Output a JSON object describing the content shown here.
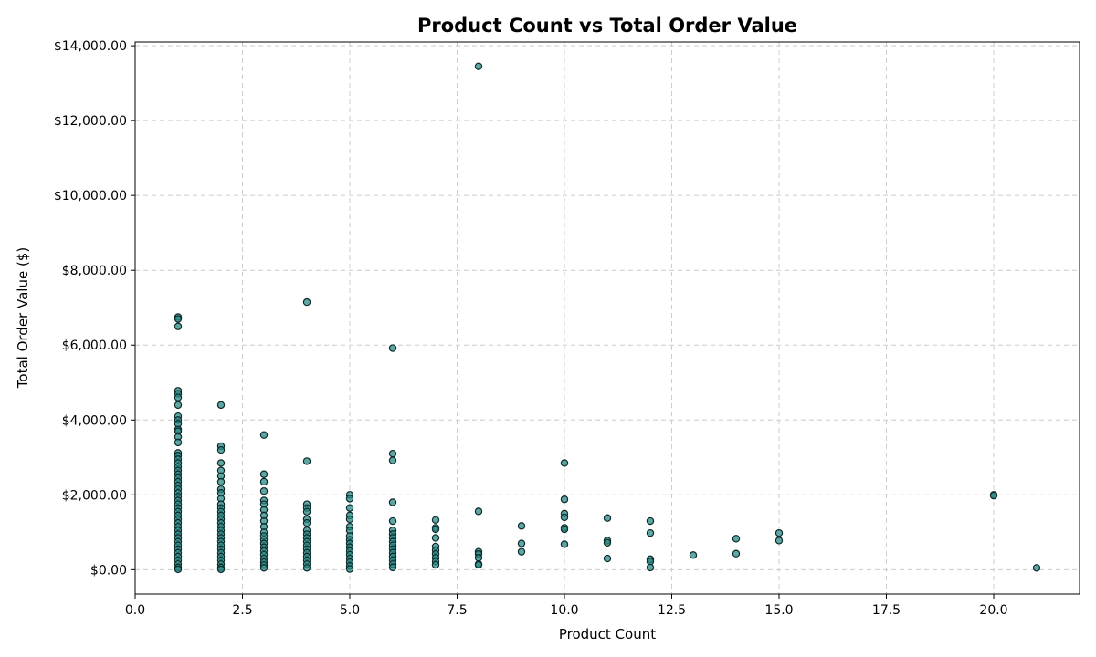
{
  "chart_data": {
    "type": "scatter",
    "title": "Product Count vs Total Order Value",
    "xlabel": "Product Count",
    "ylabel": "Total Order Value ($)",
    "xlim": [
      0,
      22
    ],
    "ylim": [
      -650,
      14100
    ],
    "xticks": [
      0.0,
      2.5,
      5.0,
      7.5,
      10.0,
      12.5,
      15.0,
      17.5,
      20.0
    ],
    "xtick_labels": [
      "0.0",
      "2.5",
      "5.0",
      "7.5",
      "10.0",
      "12.5",
      "15.0",
      "17.5",
      "20.0"
    ],
    "yticks": [
      0,
      2000,
      4000,
      6000,
      8000,
      10000,
      12000,
      14000
    ],
    "ytick_labels": [
      "$0.00",
      "$2,000.00",
      "$4,000.00",
      "$6,000.00",
      "$8,000.00",
      "$10,000.00",
      "$12,000.00",
      "$14,000.00"
    ],
    "grid": true,
    "marker_color": "#2a8a87",
    "marker_edge_color": "#0d2b2a",
    "points": [
      {
        "x": 1,
        "y": 6750
      },
      {
        "x": 1,
        "y": 6700
      },
      {
        "x": 1,
        "y": 6500
      },
      {
        "x": 1,
        "y": 4780
      },
      {
        "x": 1,
        "y": 4700
      },
      {
        "x": 1,
        "y": 4600
      },
      {
        "x": 1,
        "y": 4400
      },
      {
        "x": 1,
        "y": 4100
      },
      {
        "x": 1,
        "y": 4000
      },
      {
        "x": 1,
        "y": 3900
      },
      {
        "x": 1,
        "y": 3750
      },
      {
        "x": 1,
        "y": 3700
      },
      {
        "x": 1,
        "y": 3550
      },
      {
        "x": 1,
        "y": 3400
      },
      {
        "x": 1,
        "y": 3120
      },
      {
        "x": 1,
        "y": 3050
      },
      {
        "x": 1,
        "y": 2950
      },
      {
        "x": 1,
        "y": 2850
      },
      {
        "x": 1,
        "y": 2750
      },
      {
        "x": 1,
        "y": 2650
      },
      {
        "x": 1,
        "y": 2550
      },
      {
        "x": 1,
        "y": 2450
      },
      {
        "x": 1,
        "y": 2350
      },
      {
        "x": 1,
        "y": 2250
      },
      {
        "x": 1,
        "y": 2150
      },
      {
        "x": 1,
        "y": 2050
      },
      {
        "x": 1,
        "y": 1950
      },
      {
        "x": 1,
        "y": 1850
      },
      {
        "x": 1,
        "y": 1750
      },
      {
        "x": 1,
        "y": 1650
      },
      {
        "x": 1,
        "y": 1550
      },
      {
        "x": 1,
        "y": 1450
      },
      {
        "x": 1,
        "y": 1350
      },
      {
        "x": 1,
        "y": 1250
      },
      {
        "x": 1,
        "y": 1150
      },
      {
        "x": 1,
        "y": 1050
      },
      {
        "x": 1,
        "y": 950
      },
      {
        "x": 1,
        "y": 850
      },
      {
        "x": 1,
        "y": 750
      },
      {
        "x": 1,
        "y": 650
      },
      {
        "x": 1,
        "y": 550
      },
      {
        "x": 1,
        "y": 450
      },
      {
        "x": 1,
        "y": 350
      },
      {
        "x": 1,
        "y": 250
      },
      {
        "x": 1,
        "y": 150
      },
      {
        "x": 1,
        "y": 60
      },
      {
        "x": 1,
        "y": 10
      },
      {
        "x": 2,
        "y": 4400
      },
      {
        "x": 2,
        "y": 3300
      },
      {
        "x": 2,
        "y": 3200
      },
      {
        "x": 2,
        "y": 2850
      },
      {
        "x": 2,
        "y": 2650
      },
      {
        "x": 2,
        "y": 2500
      },
      {
        "x": 2,
        "y": 2350
      },
      {
        "x": 2,
        "y": 2150
      },
      {
        "x": 2,
        "y": 2050
      },
      {
        "x": 2,
        "y": 1900
      },
      {
        "x": 2,
        "y": 1750
      },
      {
        "x": 2,
        "y": 1650
      },
      {
        "x": 2,
        "y": 1550
      },
      {
        "x": 2,
        "y": 1450
      },
      {
        "x": 2,
        "y": 1350
      },
      {
        "x": 2,
        "y": 1250
      },
      {
        "x": 2,
        "y": 1150
      },
      {
        "x": 2,
        "y": 1050
      },
      {
        "x": 2,
        "y": 950
      },
      {
        "x": 2,
        "y": 850
      },
      {
        "x": 2,
        "y": 750
      },
      {
        "x": 2,
        "y": 650
      },
      {
        "x": 2,
        "y": 550
      },
      {
        "x": 2,
        "y": 450
      },
      {
        "x": 2,
        "y": 350
      },
      {
        "x": 2,
        "y": 250
      },
      {
        "x": 2,
        "y": 150
      },
      {
        "x": 2,
        "y": 60
      },
      {
        "x": 2,
        "y": 10
      },
      {
        "x": 3,
        "y": 3600
      },
      {
        "x": 3,
        "y": 2550
      },
      {
        "x": 3,
        "y": 2350
      },
      {
        "x": 3,
        "y": 2100
      },
      {
        "x": 3,
        "y": 1850
      },
      {
        "x": 3,
        "y": 1750
      },
      {
        "x": 3,
        "y": 1600
      },
      {
        "x": 3,
        "y": 1450
      },
      {
        "x": 3,
        "y": 1300
      },
      {
        "x": 3,
        "y": 1150
      },
      {
        "x": 3,
        "y": 1000
      },
      {
        "x": 3,
        "y": 900
      },
      {
        "x": 3,
        "y": 800
      },
      {
        "x": 3,
        "y": 700
      },
      {
        "x": 3,
        "y": 600
      },
      {
        "x": 3,
        "y": 500
      },
      {
        "x": 3,
        "y": 400
      },
      {
        "x": 3,
        "y": 300
      },
      {
        "x": 3,
        "y": 200
      },
      {
        "x": 3,
        "y": 120
      },
      {
        "x": 3,
        "y": 50
      },
      {
        "x": 4,
        "y": 7150
      },
      {
        "x": 4,
        "y": 2900
      },
      {
        "x": 4,
        "y": 1750
      },
      {
        "x": 4,
        "y": 1650
      },
      {
        "x": 4,
        "y": 1550
      },
      {
        "x": 4,
        "y": 1350
      },
      {
        "x": 4,
        "y": 1250
      },
      {
        "x": 4,
        "y": 1050
      },
      {
        "x": 4,
        "y": 950
      },
      {
        "x": 4,
        "y": 850
      },
      {
        "x": 4,
        "y": 750
      },
      {
        "x": 4,
        "y": 650
      },
      {
        "x": 4,
        "y": 550
      },
      {
        "x": 4,
        "y": 450
      },
      {
        "x": 4,
        "y": 350
      },
      {
        "x": 4,
        "y": 250
      },
      {
        "x": 4,
        "y": 150
      },
      {
        "x": 4,
        "y": 50
      },
      {
        "x": 5,
        "y": 2000
      },
      {
        "x": 5,
        "y": 1900
      },
      {
        "x": 5,
        "y": 1650
      },
      {
        "x": 5,
        "y": 1450
      },
      {
        "x": 5,
        "y": 1350
      },
      {
        "x": 5,
        "y": 1150
      },
      {
        "x": 5,
        "y": 1050
      },
      {
        "x": 5,
        "y": 900
      },
      {
        "x": 5,
        "y": 800
      },
      {
        "x": 5,
        "y": 700
      },
      {
        "x": 5,
        "y": 600
      },
      {
        "x": 5,
        "y": 500
      },
      {
        "x": 5,
        "y": 400
      },
      {
        "x": 5,
        "y": 300
      },
      {
        "x": 5,
        "y": 200
      },
      {
        "x": 5,
        "y": 100
      },
      {
        "x": 5,
        "y": 20
      },
      {
        "x": 6,
        "y": 5920
      },
      {
        "x": 6,
        "y": 3100
      },
      {
        "x": 6,
        "y": 2920
      },
      {
        "x": 6,
        "y": 1800
      },
      {
        "x": 6,
        "y": 1300
      },
      {
        "x": 6,
        "y": 1050
      },
      {
        "x": 6,
        "y": 950
      },
      {
        "x": 6,
        "y": 850
      },
      {
        "x": 6,
        "y": 750
      },
      {
        "x": 6,
        "y": 650
      },
      {
        "x": 6,
        "y": 550
      },
      {
        "x": 6,
        "y": 450
      },
      {
        "x": 6,
        "y": 350
      },
      {
        "x": 6,
        "y": 250
      },
      {
        "x": 6,
        "y": 150
      },
      {
        "x": 6,
        "y": 60
      },
      {
        "x": 7,
        "y": 1330
      },
      {
        "x": 7,
        "y": 1120
      },
      {
        "x": 7,
        "y": 1080
      },
      {
        "x": 7,
        "y": 850
      },
      {
        "x": 7,
        "y": 620
      },
      {
        "x": 7,
        "y": 520
      },
      {
        "x": 7,
        "y": 420
      },
      {
        "x": 7,
        "y": 320
      },
      {
        "x": 7,
        "y": 220
      },
      {
        "x": 7,
        "y": 130
      },
      {
        "x": 8,
        "y": 13450
      },
      {
        "x": 8,
        "y": 1560
      },
      {
        "x": 8,
        "y": 480
      },
      {
        "x": 8,
        "y": 420
      },
      {
        "x": 8,
        "y": 320
      },
      {
        "x": 8,
        "y": 150
      },
      {
        "x": 8,
        "y": 130
      },
      {
        "x": 9,
        "y": 1170
      },
      {
        "x": 9,
        "y": 700
      },
      {
        "x": 9,
        "y": 480
      },
      {
        "x": 10,
        "y": 2850
      },
      {
        "x": 10,
        "y": 1880
      },
      {
        "x": 10,
        "y": 1500
      },
      {
        "x": 10,
        "y": 1400
      },
      {
        "x": 10,
        "y": 1120
      },
      {
        "x": 10,
        "y": 1080
      },
      {
        "x": 10,
        "y": 680
      },
      {
        "x": 11,
        "y": 1380
      },
      {
        "x": 11,
        "y": 780
      },
      {
        "x": 11,
        "y": 720
      },
      {
        "x": 11,
        "y": 300
      },
      {
        "x": 12,
        "y": 1300
      },
      {
        "x": 12,
        "y": 980
      },
      {
        "x": 12,
        "y": 280
      },
      {
        "x": 12,
        "y": 220
      },
      {
        "x": 12,
        "y": 60
      },
      {
        "x": 13,
        "y": 390
      },
      {
        "x": 14,
        "y": 830
      },
      {
        "x": 14,
        "y": 430
      },
      {
        "x": 15,
        "y": 980
      },
      {
        "x": 15,
        "y": 780
      },
      {
        "x": 20,
        "y": 2000
      },
      {
        "x": 20,
        "y": 1980
      },
      {
        "x": 21,
        "y": 50
      }
    ]
  }
}
